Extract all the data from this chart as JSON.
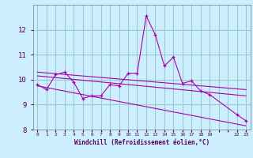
{
  "title": "",
  "xlabel": "Windchill (Refroidissement éolien,°C)",
  "bg_color": "#cceeff",
  "line_color": "#aa00aa",
  "grid_color": "#99cccc",
  "x_data": [
    0,
    1,
    2,
    3,
    4,
    5,
    6,
    7,
    8,
    9,
    10,
    11,
    12,
    13,
    14,
    15,
    16,
    17,
    18,
    19,
    22,
    23
  ],
  "y_data": [
    9.8,
    9.6,
    10.2,
    10.3,
    9.9,
    9.25,
    9.35,
    9.35,
    9.8,
    9.75,
    10.25,
    10.25,
    12.55,
    11.8,
    10.55,
    10.9,
    9.85,
    9.95,
    9.55,
    9.4,
    8.6,
    8.35
  ],
  "trend1_x": [
    0,
    23
  ],
  "trend1_y": [
    10.15,
    9.35
  ],
  "trend2_x": [
    0,
    23
  ],
  "trend2_y": [
    9.75,
    8.15
  ],
  "trend3_x": [
    0,
    23
  ],
  "trend3_y": [
    10.3,
    9.6
  ],
  "ylim": [
    8.0,
    13.0
  ],
  "xlim": [
    -0.5,
    23.5
  ],
  "yticks": [
    8,
    9,
    10,
    11,
    12
  ],
  "xtick_labels": [
    "0",
    "1",
    "2",
    "3",
    "4",
    "5",
    "6",
    "7",
    "8",
    "9",
    "10",
    "11",
    "12",
    "13",
    "14",
    "15",
    "16",
    "17",
    "18",
    "19",
    "",
    "",
    "22",
    "23"
  ],
  "xtick_positions": [
    0,
    1,
    2,
    3,
    4,
    5,
    6,
    7,
    8,
    9,
    10,
    11,
    12,
    13,
    14,
    15,
    16,
    17,
    18,
    19,
    20,
    21,
    22,
    23
  ]
}
